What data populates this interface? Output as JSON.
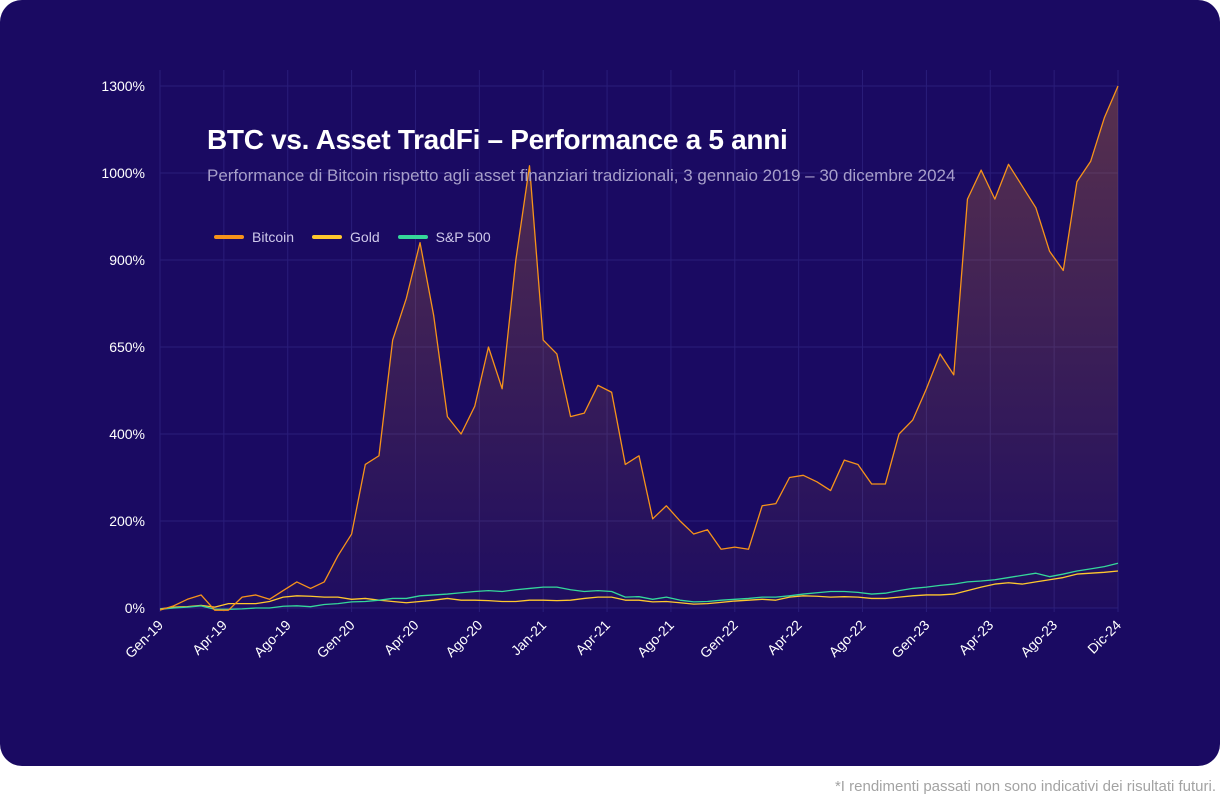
{
  "footnote": "*I rendimenti passati non sono indicativi dei risultati futuri.",
  "chart_data": {
    "type": "line",
    "title": "BTC vs. Asset TradFi – Performance a 5 anni",
    "subtitle": "Performance di Bitcoin rispetto agli asset finanziari tradizionali, 3 gennaio 2019 – 30 dicembre 2024",
    "xlabel": "",
    "ylabel": "",
    "y_tick_labels": [
      "0%",
      "200%",
      "400%",
      "650%",
      "900%",
      "1000%",
      "1300%"
    ],
    "x_tick_labels": [
      "Gen-19",
      "Apr-19",
      "Ago-19",
      "Gen-20",
      "Apr-20",
      "Ago-20",
      "Jan-21",
      "Apr-21",
      "Ago-21",
      "Gen-22",
      "Apr-22",
      "Ago-22",
      "Gen-23",
      "Apr-23",
      "Ago-23",
      "Dic-24"
    ],
    "grid": true,
    "legend_position": "top-left",
    "series": [
      {
        "name": "Bitcoin",
        "color": "#f7931a",
        "values": [
          -5,
          5,
          20,
          30,
          -5,
          -5,
          25,
          30,
          20,
          40,
          60,
          45,
          60,
          120,
          170,
          330,
          350,
          670,
          790,
          920,
          740,
          450,
          400,
          480,
          650,
          530,
          900,
          1025,
          670,
          630,
          450,
          460,
          540,
          520,
          330,
          350,
          205,
          235,
          200,
          170,
          180,
          135,
          140,
          135,
          235,
          240,
          300,
          305,
          290,
          270,
          340,
          330,
          285,
          285,
          400,
          440,
          530,
          630,
          570,
          970,
          1010,
          970,
          1030,
          985,
          960,
          910,
          870,
          990,
          1040,
          1190,
          1300
        ]
      },
      {
        "name": "Gold",
        "color": "#ffc82e",
        "values": [
          -2,
          2,
          3,
          6,
          2,
          10,
          10,
          10,
          15,
          25,
          28,
          27,
          25,
          25,
          20,
          22,
          18,
          15,
          12,
          15,
          18,
          22,
          18,
          18,
          17,
          15,
          15,
          18,
          18,
          17,
          18,
          22,
          25,
          25,
          18,
          18,
          14,
          15,
          12,
          9,
          10,
          13,
          16,
          18,
          20,
          18,
          25,
          28,
          27,
          25,
          26,
          25,
          22,
          22,
          25,
          28,
          30,
          30,
          32,
          40,
          48,
          55,
          58,
          55,
          60,
          65,
          70,
          78,
          80,
          82,
          85
        ]
      },
      {
        "name": "S&P 500",
        "color": "#35d79a",
        "values": [
          -3,
          0,
          2,
          5,
          -3,
          -3,
          -2,
          0,
          0,
          4,
          5,
          3,
          8,
          10,
          14,
          15,
          18,
          22,
          22,
          28,
          30,
          32,
          35,
          38,
          40,
          38,
          42,
          45,
          48,
          48,
          42,
          38,
          40,
          38,
          25,
          26,
          20,
          25,
          18,
          14,
          15,
          18,
          20,
          22,
          25,
          25,
          28,
          32,
          35,
          38,
          38,
          36,
          32,
          34,
          40,
          45,
          48,
          52,
          55,
          60,
          62,
          65,
          70,
          75,
          80,
          72,
          78,
          85,
          90,
          95,
          103
        ]
      }
    ]
  }
}
